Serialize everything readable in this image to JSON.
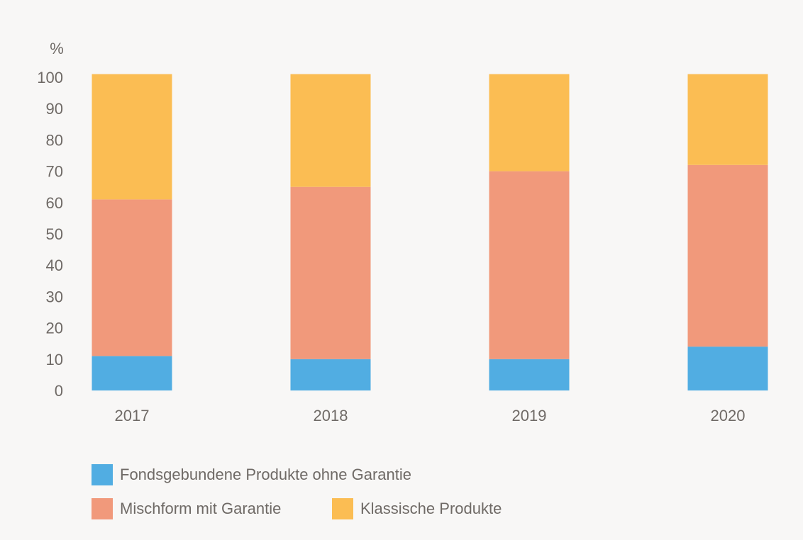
{
  "chart_data": {
    "type": "bar",
    "stacked": true,
    "y_unit_label": "%",
    "categories": [
      "2017",
      "2018",
      "2019",
      "2020"
    ],
    "ylim": [
      0,
      100
    ],
    "y_ticks": [
      "0",
      "10",
      "20",
      "30",
      "40",
      "50",
      "60",
      "70",
      "80",
      "90",
      "100"
    ],
    "series": [
      {
        "name": "Fondsgebundene Produkte ohne Garantie",
        "color": "#51ade2",
        "values": [
          11,
          10,
          10,
          14
        ]
      },
      {
        "name": "Mischform mit Garantie",
        "color": "#f1997b",
        "values": [
          50,
          55,
          60,
          58
        ]
      },
      {
        "name": "Klassische Produkte",
        "color": "#fbbd53",
        "values": [
          40,
          36,
          31,
          29
        ]
      }
    ],
    "grid": false,
    "legend_position": "bottom"
  }
}
